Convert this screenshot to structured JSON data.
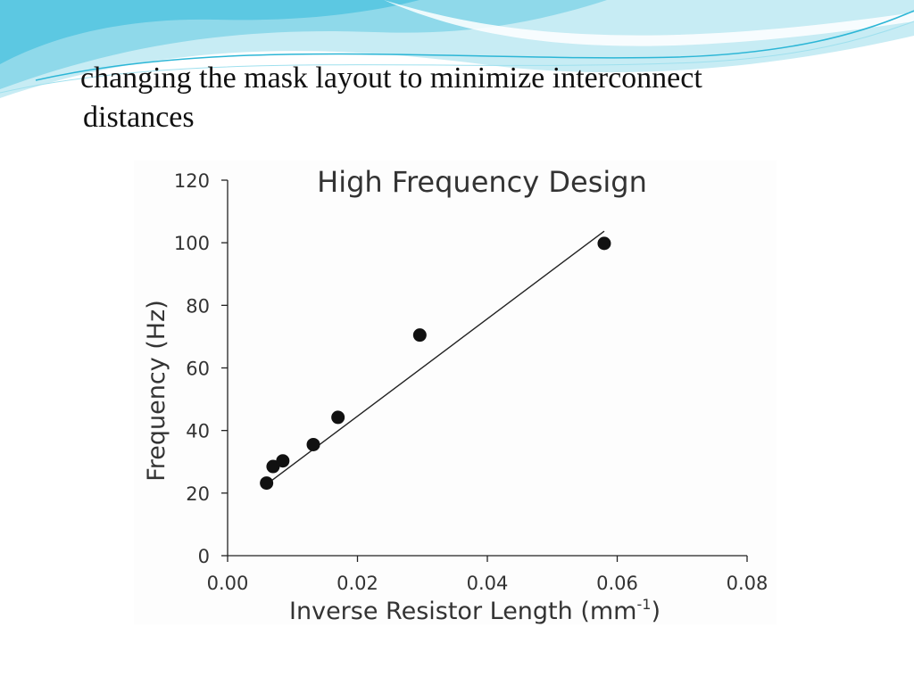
{
  "slide": {
    "title_line1": "changing the mask layout to minimize interconnect",
    "title_line2": "distances"
  },
  "colors": {
    "background": "#ffffff",
    "wave_light": "#b9e6f0",
    "wave_mid": "#7dd3e8",
    "wave_dark": "#2cb6d6",
    "marker": "#111111",
    "fit_line": "#222222",
    "text": "#333333"
  },
  "chart_data": {
    "type": "scatter",
    "title": "High Frequency Design",
    "xlabel": "Inverse Resistor Length (mm",
    "xlabel_superscript": "-1",
    "xlabel_suffix": ")",
    "ylabel": "Frequency (Hz)",
    "xlim": [
      0,
      0.08
    ],
    "ylim": [
      0,
      120
    ],
    "x_ticks": [
      0,
      0.02,
      0.04,
      0.06,
      0.08
    ],
    "x_tick_labels": [
      "0.00",
      "0.02",
      "0.04",
      "0.06",
      "0.08"
    ],
    "y_ticks": [
      0,
      20,
      40,
      60,
      80,
      100,
      120
    ],
    "y_tick_labels": [
      "0",
      "20",
      "40",
      "60",
      "80",
      "100",
      "120"
    ],
    "grid": false,
    "legend": "none",
    "series": [
      {
        "points": [
          {
            "x": 0.006,
            "y": 23.2
          },
          {
            "x": 0.007,
            "y": 28.5
          },
          {
            "x": 0.0085,
            "y": 30.3
          },
          {
            "x": 0.0132,
            "y": 35.5
          },
          {
            "x": 0.017,
            "y": 44.2
          },
          {
            "x": 0.0296,
            "y": 70.5
          },
          {
            "x": 0.058,
            "y": 99.8
          }
        ]
      }
    ],
    "trendline": {
      "type": "linear",
      "points": [
        {
          "x": 0.006,
          "y": 22.8
        },
        {
          "x": 0.058,
          "y": 103.7
        }
      ]
    }
  }
}
